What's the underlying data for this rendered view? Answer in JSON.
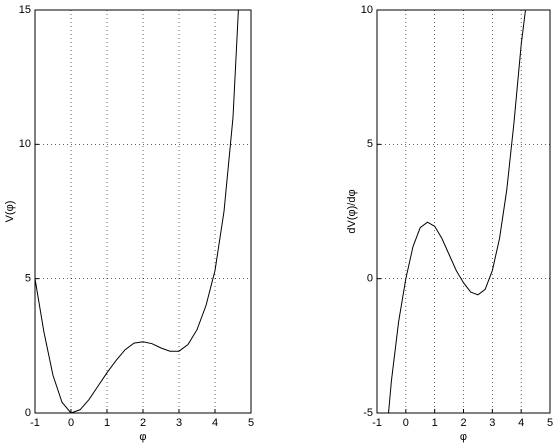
{
  "chart_data": [
    {
      "type": "line",
      "xlabel": "φ",
      "ylabel": "V(φ)",
      "x": [
        -1,
        -0.75,
        -0.5,
        -0.25,
        0,
        0.25,
        0.5,
        0.75,
        1,
        1.25,
        1.5,
        1.75,
        2,
        2.25,
        2.5,
        2.75,
        3,
        3.25,
        3.5,
        3.75,
        4,
        4.25,
        4.5,
        4.65
      ],
      "series": [
        {
          "color": "#000000",
          "values": [
            5,
            3.0,
            1.4,
            0.4,
            0,
            0.12,
            0.5,
            1.0,
            1.5,
            1.95,
            2.35,
            2.6,
            2.65,
            2.58,
            2.42,
            2.3,
            2.3,
            2.55,
            3.1,
            4.0,
            5.3,
            7.5,
            11.0,
            15.0
          ]
        }
      ],
      "xlim": [
        -1,
        5
      ],
      "xticks": [
        -1,
        0,
        1,
        2,
        3,
        4,
        5
      ],
      "ylim": [
        0,
        15
      ],
      "yticks": [
        0,
        5,
        10,
        15
      ],
      "grid": true
    },
    {
      "type": "line",
      "xlabel": "φ",
      "ylabel": "dV(φ)/dφ",
      "x": [
        -0.6,
        -0.5,
        -0.25,
        0,
        0.25,
        0.5,
        0.75,
        1,
        1.25,
        1.5,
        1.75,
        2,
        2.25,
        2.5,
        2.75,
        3,
        3.25,
        3.5,
        3.75,
        4,
        4.15
      ],
      "series": [
        {
          "color": "#000000",
          "values": [
            -5,
            -3.8,
            -1.6,
            0,
            1.2,
            1.9,
            2.1,
            1.95,
            1.5,
            0.9,
            0.3,
            -0.15,
            -0.5,
            -0.6,
            -0.4,
            0.3,
            1.5,
            3.3,
            5.8,
            8.7,
            10
          ]
        }
      ],
      "xlim": [
        -1,
        5
      ],
      "xticks": [
        -1,
        0,
        1,
        2,
        3,
        4,
        5
      ],
      "ylim": [
        -5,
        10
      ],
      "yticks": [
        -5,
        0,
        5,
        10
      ],
      "grid": true
    }
  ]
}
